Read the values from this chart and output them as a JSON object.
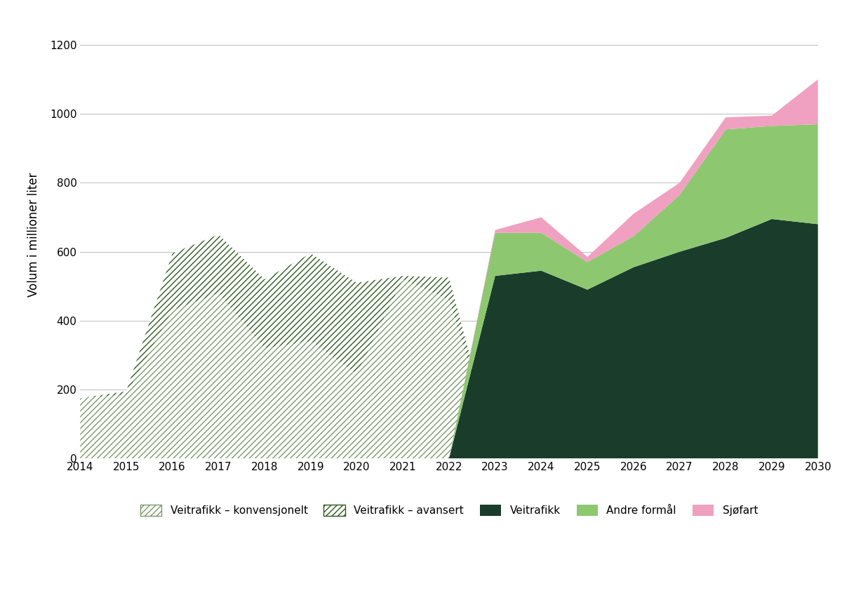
{
  "years": [
    2014,
    2015,
    2016,
    2017,
    2018,
    2019,
    2020,
    2021,
    2022,
    2023,
    2024,
    2025,
    2026,
    2027,
    2028,
    2029,
    2030
  ],
  "veitrafikk_konv": [
    175,
    185,
    430,
    480,
    320,
    340,
    245,
    520,
    460,
    25,
    0,
    0,
    0,
    0,
    0,
    0,
    0
  ],
  "veitrafikk_avansert": [
    0,
    10,
    165,
    170,
    200,
    255,
    265,
    10,
    65,
    0,
    0,
    0,
    0,
    0,
    0,
    0,
    0
  ],
  "veitrafikk": [
    0,
    0,
    0,
    0,
    0,
    0,
    0,
    0,
    0,
    530,
    545,
    490,
    555,
    600,
    640,
    695,
    680
  ],
  "andre_formal": [
    0,
    0,
    0,
    0,
    0,
    0,
    0,
    0,
    0,
    125,
    110,
    80,
    90,
    165,
    315,
    270,
    290
  ],
  "sjofart": [
    0,
    0,
    0,
    0,
    0,
    0,
    0,
    0,
    0,
    8,
    45,
    15,
    65,
    35,
    35,
    30,
    130
  ],
  "color_konv_face": "#e8e8e8",
  "color_konv_edge": "#7a9a6a",
  "color_avansert_face": "#d0d8c8",
  "color_avansert_edge": "#2d5a1e",
  "color_veitrafikk": "#1a3d2b",
  "color_andre_formal": "#8dc870",
  "color_sjofart": "#f0a0c0",
  "ylabel": "Volum i millioner liter",
  "ylim": [
    0,
    1300
  ],
  "yticks": [
    0,
    200,
    400,
    600,
    800,
    1000,
    1200
  ],
  "background_color": "#ffffff",
  "legend_labels": [
    "Veitrafikk – konvensjonelt",
    "Veitrafikk – avansert",
    "Veitrafikk",
    "Andre formål",
    "Sjøfart"
  ]
}
